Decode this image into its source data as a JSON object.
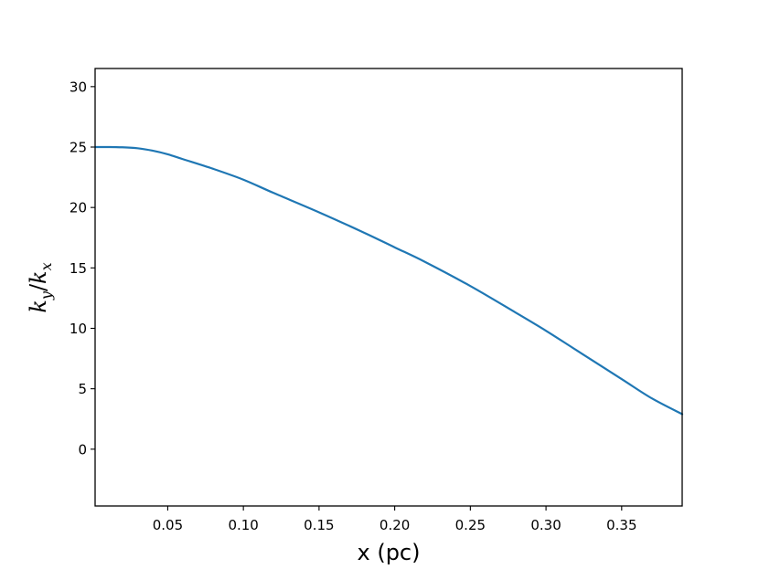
{
  "chart_data": {
    "type": "line",
    "title": "",
    "xlabel": "x (pc)",
    "ylabel": {
      "main_num": "k",
      "sub_num": "y",
      "slash": "/",
      "main_den": "k",
      "sub_den": "x"
    },
    "xlim": [
      0.002,
      0.39
    ],
    "ylim": [
      -4.7,
      31.5
    ],
    "xticks": [
      0.05,
      0.1,
      0.15,
      0.2,
      0.25,
      0.3,
      0.35
    ],
    "xtick_labels": [
      "0.05",
      "0.10",
      "0.15",
      "0.20",
      "0.25",
      "0.30",
      "0.35"
    ],
    "yticks": [
      0,
      5,
      10,
      15,
      20,
      25,
      30
    ],
    "ytick_labels": [
      "0",
      "5",
      "10",
      "15",
      "20",
      "25",
      "30"
    ],
    "grid": false,
    "series": [
      {
        "color": "#1f77b4",
        "x": [
          0.002,
          0.01,
          0.02,
          0.03,
          0.04,
          0.05,
          0.06,
          0.08,
          0.1,
          0.12,
          0.15,
          0.18,
          0.2,
          0.22,
          0.25,
          0.28,
          0.3,
          0.32,
          0.35,
          0.37,
          0.39
        ],
        "y": [
          25.0,
          25.0,
          24.98,
          24.9,
          24.7,
          24.4,
          24.0,
          23.2,
          22.3,
          21.2,
          19.6,
          17.9,
          16.7,
          15.5,
          13.5,
          11.3,
          9.8,
          8.2,
          5.8,
          4.2,
          2.9
        ]
      }
    ]
  }
}
